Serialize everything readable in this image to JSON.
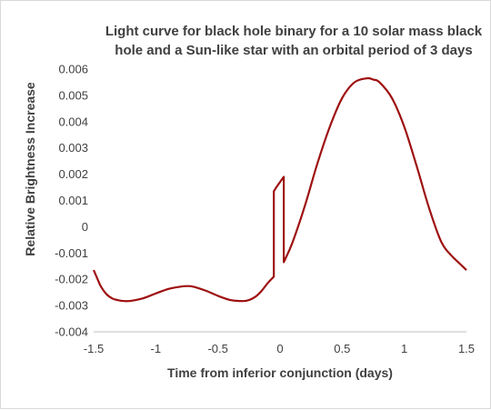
{
  "chart_data": {
    "type": "line",
    "title_lines": [
      "Light curve for black hole binary for a 10 solar mass black",
      "hole and a Sun-like star with an orbital period of 3 days"
    ],
    "xlabel": "Time from inferior conjunction (days)",
    "ylabel": "Relative Brightness Increase",
    "xlim": [
      -1.5,
      1.5
    ],
    "ylim": [
      -0.004,
      0.006
    ],
    "x_ticks": [
      "-1.5",
      "-1",
      "-0.5",
      "0",
      "0.5",
      "1",
      "1.5"
    ],
    "y_ticks": [
      "0.006",
      "0.005",
      "0.004",
      "0.003",
      "0.002",
      "0.001",
      "0",
      "-0.001",
      "-0.002",
      "-0.003",
      "-0.004"
    ],
    "grid": false,
    "line_color": "#9e1010",
    "series": [
      {
        "x": [
          -1.5,
          -1.45,
          -1.4,
          -1.35,
          -1.3,
          -1.25,
          -1.2,
          -1.1,
          -1.0,
          -0.9,
          -0.8,
          -0.75,
          -0.7,
          -0.6,
          -0.5,
          -0.4,
          -0.3,
          -0.25,
          -0.2,
          -0.15,
          -0.1,
          -0.06,
          -0.05,
          -0.05,
          -0.03,
          -0.03,
          0.03,
          0.03,
          0.04,
          0.1,
          0.2,
          0.3,
          0.4,
          0.5,
          0.6,
          0.7,
          0.75,
          0.8,
          0.9,
          1.0,
          1.1,
          1.2,
          1.3,
          1.4,
          1.5
        ],
        "y": [
          -0.00165,
          -0.0022,
          -0.00255,
          -0.00273,
          -0.0028,
          -0.00283,
          -0.00282,
          -0.00272,
          -0.00254,
          -0.00237,
          -0.00228,
          -0.00226,
          -0.00228,
          -0.00243,
          -0.00263,
          -0.00279,
          -0.00283,
          -0.00279,
          -0.00267,
          -0.00245,
          -0.00215,
          -0.00195,
          -0.0019,
          0.00135,
          0.0015,
          0.0015,
          0.0019,
          -0.00135,
          -0.00125,
          -0.0006,
          0.0008,
          0.0024,
          0.0038,
          0.0049,
          0.0055,
          0.00565,
          0.0056,
          0.0055,
          0.0049,
          0.0038,
          0.0023,
          0.0007,
          -0.0006,
          -0.0012,
          -0.00165
        ]
      }
    ]
  }
}
